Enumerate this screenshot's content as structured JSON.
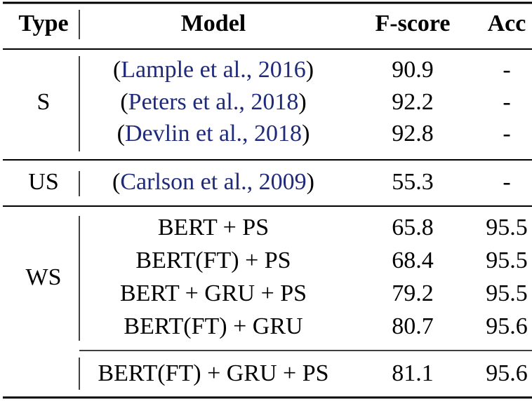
{
  "header": {
    "type": "Type",
    "model": "Model",
    "fscore": "F-score",
    "acc": "Acc"
  },
  "groups": [
    {
      "type": "S",
      "rows": [
        {
          "model": {
            "open": "(",
            "cite": "Lample et al., 2016",
            "close": ")"
          },
          "fscore": 90.9,
          "acc": "-"
        },
        {
          "model": {
            "open": "(",
            "cite": "Peters et al., 2018",
            "close": ")"
          },
          "fscore": 92.2,
          "acc": "-"
        },
        {
          "model": {
            "open": "(",
            "cite": "Devlin et al., 2018",
            "close": ")"
          },
          "fscore": 92.8,
          "acc": "-"
        }
      ]
    },
    {
      "type": "US",
      "rows": [
        {
          "model": {
            "open": "(",
            "cite": "Carlson et al., 2009",
            "close": ")"
          },
          "fscore": 55.3,
          "acc": "-"
        }
      ]
    },
    {
      "type": "WS",
      "rows": [
        {
          "model": "BERT + PS",
          "fscore": 65.8,
          "acc": 95.5
        },
        {
          "model": "BERT(FT) + PS",
          "fscore": 68.4,
          "acc": 95.5
        },
        {
          "model": "BERT + GRU + PS",
          "fscore": 79.2,
          "acc": 95.5
        },
        {
          "model": "BERT(FT) + GRU",
          "fscore": 80.7,
          "acc": 95.6
        },
        {
          "model": "BERT(FT) + GRU + PS",
          "fscore": 81.1,
          "acc": 95.6
        }
      ]
    }
  ]
}
